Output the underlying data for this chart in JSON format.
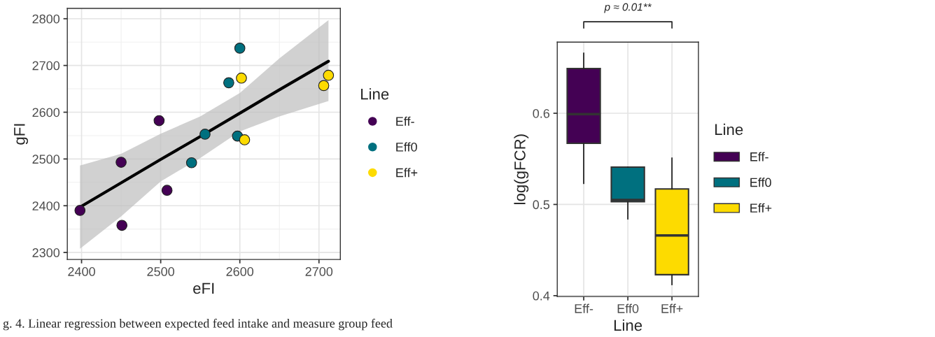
{
  "chart_data": [
    {
      "type": "scatter",
      "xlabel": "eFI",
      "ylabel": "gFI",
      "legend_title": "Line",
      "legend": "right",
      "grid": true,
      "marker": "circle",
      "xlim": [
        2382,
        2727
      ],
      "ylim": [
        2285,
        2822
      ],
      "xticks": [
        2400,
        2500,
        2600,
        2700
      ],
      "yticks": [
        2300,
        2400,
        2500,
        2600,
        2700,
        2800
      ],
      "series": [
        {
          "name": "Eff-",
          "color": "#440154",
          "x": [
            2398,
            2450,
            2498,
            2508,
            2451
          ],
          "values": [
            2390,
            2493,
            2582,
            2433,
            2358
          ]
        },
        {
          "name": "Eff0",
          "color": "#00707f",
          "x": [
            2600,
            2586,
            2556,
            2539,
            2597
          ],
          "values": [
            2737,
            2663,
            2553,
            2492,
            2549
          ]
        },
        {
          "name": "Eff+",
          "color": "#fddb00",
          "x": [
            2602,
            2606,
            2706,
            2712
          ],
          "values": [
            2673,
            2541,
            2657,
            2679
          ]
        },
        {
          "type": "line",
          "marker": "none",
          "color": "#000000",
          "x": [
            2398,
            2450,
            2500,
            2550,
            2600,
            2650,
            2712
          ],
          "values": [
            2397,
            2449,
            2499,
            2548,
            2598,
            2648,
            2709
          ],
          "lower": [
            2308,
            2377,
            2452,
            2502,
            2559,
            2591,
            2624
          ],
          "upper": [
            2486,
            2511,
            2554,
            2591,
            2641,
            2715,
            2797
          ]
        }
      ],
      "annotations": [
        "g. 4. Linear regression between expected feed intake and measure group feed"
      ]
    },
    {
      "type": "box",
      "xlabel": "Line",
      "ylabel": "log(gFCR)",
      "legend_title": "Line",
      "legend": "right",
      "grid": true,
      "categories": [
        "Eff-",
        "Eff0",
        "Eff+"
      ],
      "ylim": [
        0.399,
        0.678
      ],
      "yticks": [
        0.4,
        0.5,
        0.6
      ],
      "series": [
        {
          "name": "Eff-",
          "color": "#440154",
          "boxes": [
            {
              "low": 0.523,
              "q1": 0.567,
              "median": 0.599,
              "q3": 0.649,
              "high": 0.666
            },
            null,
            null
          ]
        },
        {
          "name": "Eff0",
          "color": "#00707f",
          "boxes": [
            null,
            {
              "low": 0.484,
              "q1": 0.503,
              "median": 0.505,
              "q3": 0.541,
              "high": 0.541
            },
            null
          ]
        },
        {
          "name": "Eff+",
          "color": "#fddb00",
          "boxes": [
            null,
            null,
            {
              "low": 0.412,
              "q1": 0.423,
              "median": 0.466,
              "q3": 0.517,
              "high": 0.551
            }
          ]
        }
      ],
      "annotations": [
        "p ≈ 0.01**"
      ]
    }
  ]
}
